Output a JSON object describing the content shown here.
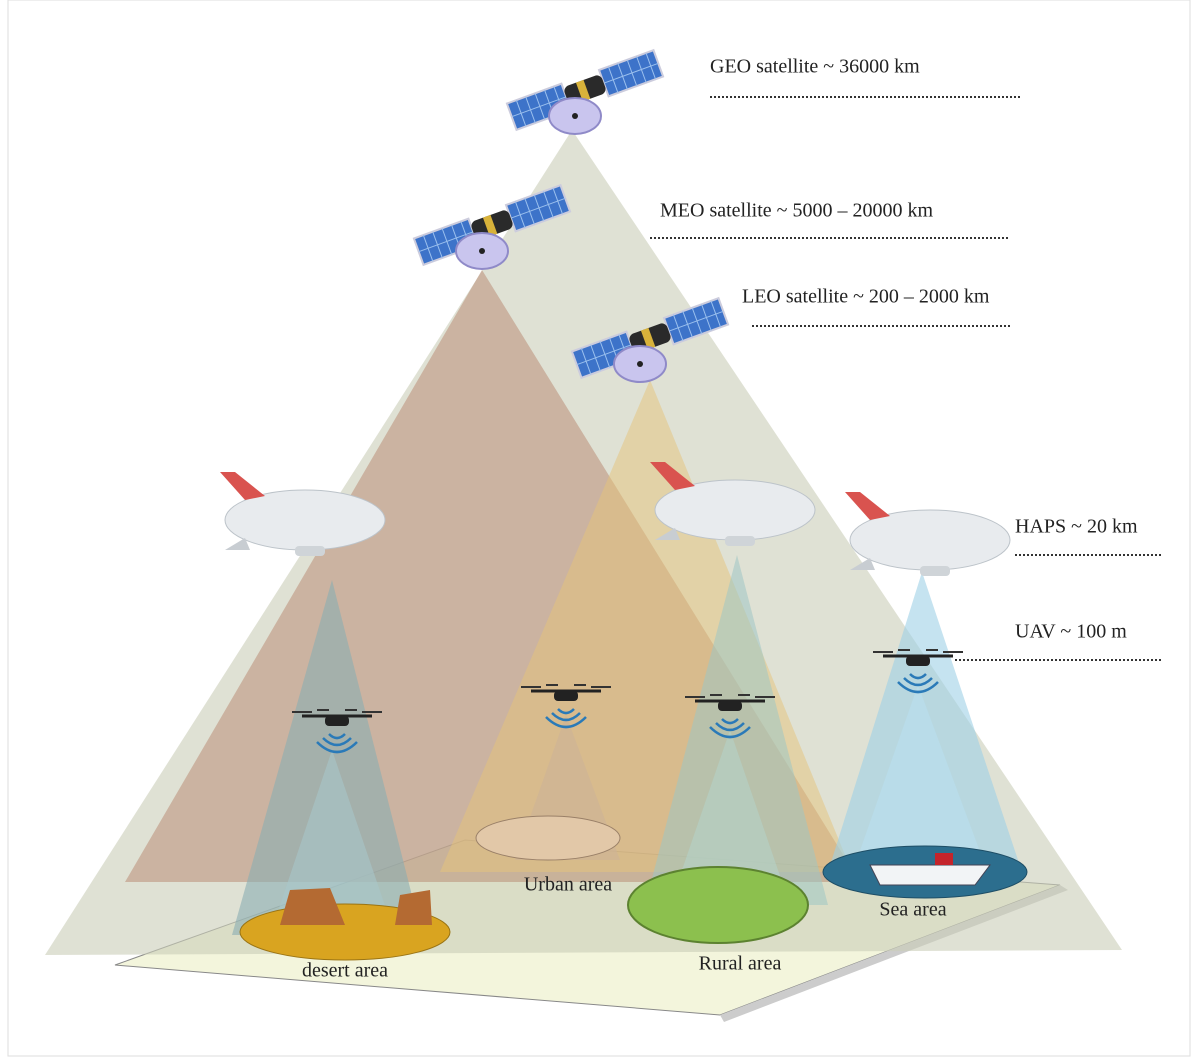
{
  "layers": [
    {
      "label": "GEO satellite ~ 36000 km"
    },
    {
      "label": "MEO satellite ~ 5000 – 20000 km"
    },
    {
      "label": "LEO satellite ~ 200 – 2000 km"
    },
    {
      "label": "HAPS ~ 20 km"
    },
    {
      "label": "UAV ~ 100 m"
    }
  ],
  "areas": [
    {
      "label": "desert area"
    },
    {
      "label": "Urban area"
    },
    {
      "label": "Rural area"
    },
    {
      "label": "Sea area"
    }
  ]
}
